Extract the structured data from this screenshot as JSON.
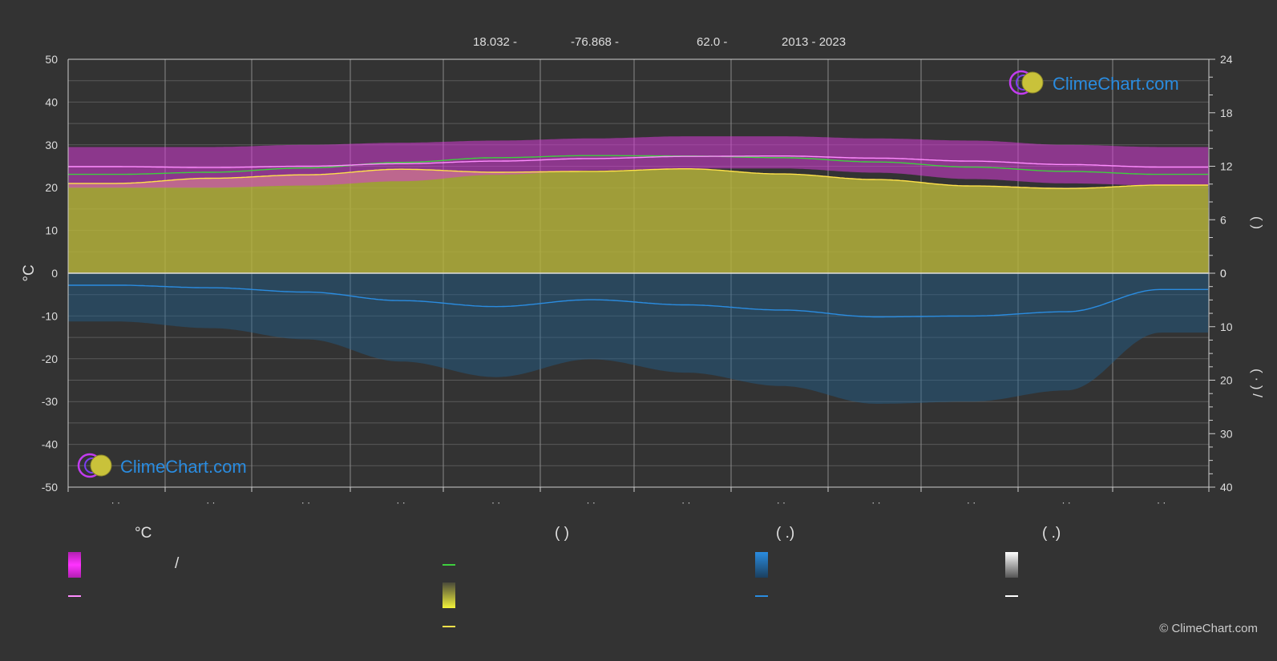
{
  "header": {
    "lat": "18.032 -",
    "lon": "-76.868 -",
    "elev": "62.0 -",
    "years": "2013 - 2023"
  },
  "watermark": {
    "text": "ClimeChart.com"
  },
  "copyright": "© ClimeChart.com",
  "colors": {
    "background": "#333333",
    "grid": "#5a5a5a",
    "vgrid": "#8a8a8a",
    "band_magenta": "#d63bd6",
    "sun_fill": "#b7b43a",
    "precip_fill": "#1f5f8f",
    "line_green": "#3ecf3e",
    "line_pink": "#ff8cff",
    "line_yellow": "#ffe24a",
    "line_blue": "#2a8ce0",
    "brand_blue": "#2a8ce0"
  },
  "chart_data": {
    "type": "area",
    "x_months": [
      1,
      2,
      3,
      4,
      5,
      6,
      7,
      8,
      9,
      10,
      11,
      12
    ],
    "x_tick_labels": [
      "· ·",
      "· ·",
      "· ·",
      "· ·",
      "· ·",
      "· ·",
      "· ·",
      "· ·",
      "· ·",
      "· ·",
      "· ·",
      "· ·"
    ],
    "left_axis": {
      "label": "°C",
      "ylim": [
        -50,
        50
      ],
      "ticks": [
        50,
        40,
        30,
        20,
        10,
        0,
        -10,
        -20,
        -30,
        -40,
        -50
      ]
    },
    "right_axis_top": {
      "label": "( )",
      "ylim": [
        0,
        24
      ],
      "ticks": [
        24,
        18,
        12,
        6,
        0
      ]
    },
    "right_axis_bottom": {
      "label": "( · ) /",
      "ylim": [
        0,
        40
      ],
      "ticks": [
        0,
        10,
        20,
        30,
        40
      ]
    },
    "grid": true,
    "series": [
      {
        "key": "mean_temp",
        "unit": "°C",
        "values": [
          23.1,
          23.6,
          24.6,
          25.9,
          27.0,
          27.5,
          27.4,
          27.0,
          26.0,
          24.8,
          23.8,
          23.1
        ]
      },
      {
        "key": "max_temp_line",
        "unit": "°C",
        "values": [
          24.9,
          24.7,
          25.0,
          25.6,
          26.2,
          26.8,
          27.3,
          27.4,
          26.9,
          26.2,
          25.4,
          24.8
        ]
      },
      {
        "key": "sunshine_line",
        "unit": "°C-scale",
        "values": [
          21.0,
          22.2,
          23.0,
          24.3,
          23.6,
          23.8,
          24.4,
          23.2,
          21.9,
          20.4,
          19.8,
          20.6
        ]
      },
      {
        "key": "precip_line",
        "unit": "mm-scale",
        "values": [
          2.8,
          3.4,
          4.4,
          6.4,
          7.8,
          6.2,
          7.4,
          8.6,
          10.2,
          10.0,
          9.0,
          3.8
        ]
      }
    ],
    "band": {
      "key": "min_max_range",
      "low": [
        20.0,
        20.0,
        20.5,
        21.5,
        23.0,
        24.0,
        24.5,
        24.5,
        23.5,
        22.0,
        21.0,
        20.5
      ],
      "high": [
        29.5,
        29.5,
        30.0,
        30.5,
        31.0,
        31.5,
        32.0,
        32.0,
        31.5,
        31.0,
        30.0,
        29.5
      ]
    }
  },
  "legend": {
    "col1_head": "°C",
    "col1_row1_sep": "/",
    "col2_head": "(          )",
    "col3_head": "(   .)",
    "col4_head": "(   .)"
  }
}
